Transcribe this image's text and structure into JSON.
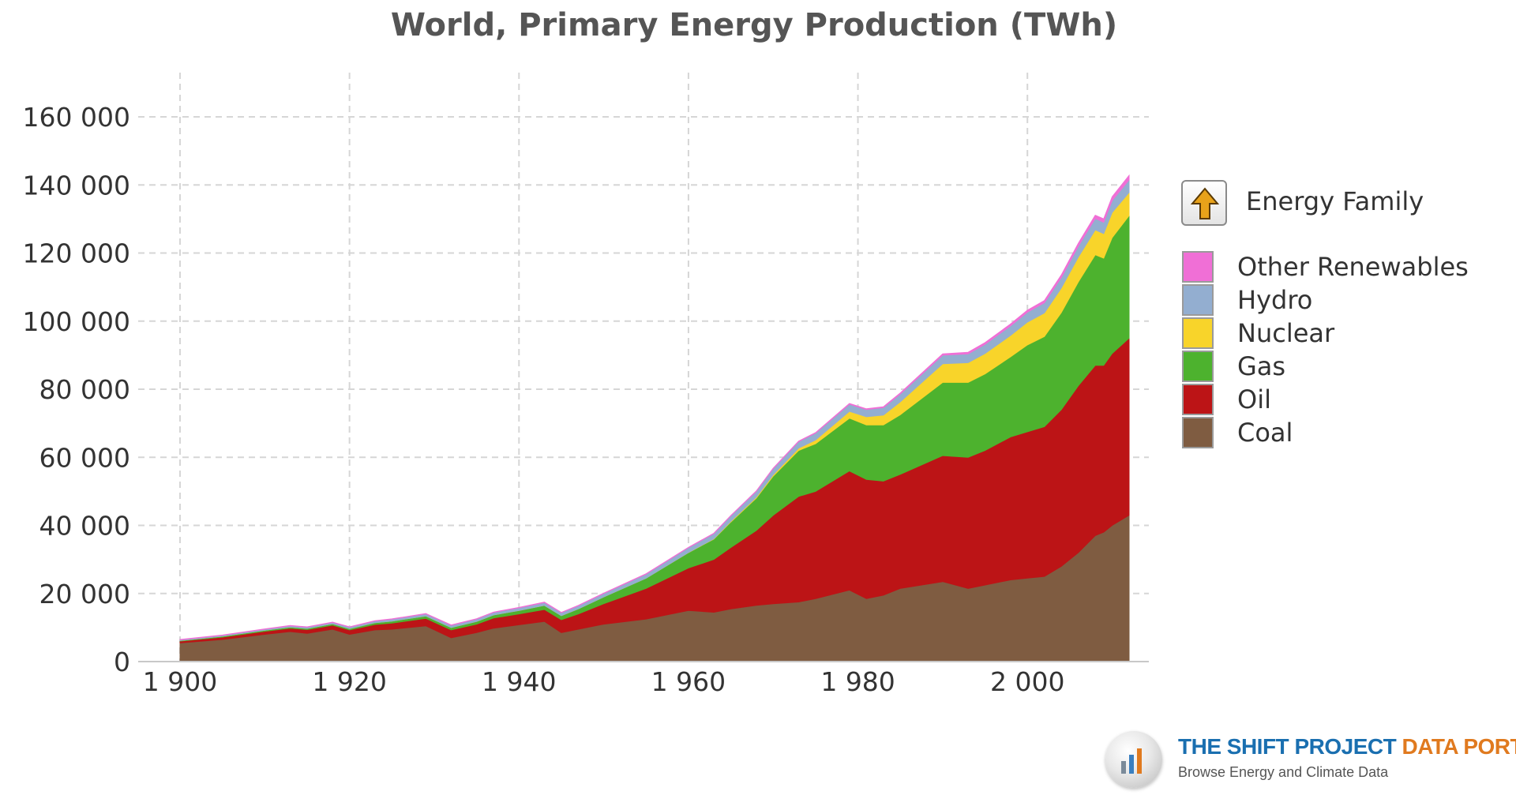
{
  "chart_data": {
    "type": "area",
    "stacked": true,
    "title": "World, Primary Energy Production (TWh)",
    "xlabel": "",
    "ylabel": "",
    "xlim": [
      1900,
      2012
    ],
    "ylim": [
      0,
      160000
    ],
    "grid": true,
    "x_ticks": [
      1900,
      1920,
      1940,
      1960,
      1980,
      2000
    ],
    "x_tick_labels": [
      "1 900",
      "1 920",
      "1 940",
      "1 960",
      "1 980",
      "2 000"
    ],
    "y_ticks": [
      0,
      20000,
      40000,
      60000,
      80000,
      100000,
      120000,
      140000,
      160000
    ],
    "y_tick_labels": [
      "0",
      "20 000",
      "40 000",
      "60 000",
      "80 000",
      "100 000",
      "120 000",
      "140 000",
      "160 000"
    ],
    "legend_heading": "Energy Family",
    "legend_position": "right",
    "x": [
      1900,
      1905,
      1910,
      1913,
      1915,
      1918,
      1920,
      1923,
      1925,
      1929,
      1932,
      1935,
      1937,
      1940,
      1943,
      1945,
      1947,
      1950,
      1955,
      1960,
      1963,
      1965,
      1968,
      1970,
      1973,
      1975,
      1979,
      1981,
      1983,
      1985,
      1990,
      1993,
      1995,
      1998,
      2000,
      2002,
      2004,
      2006,
      2008,
      2009,
      2010,
      2012
    ],
    "series": [
      {
        "name": "Coal",
        "color": "#7f5c41",
        "values": [
          5500,
          6500,
          8000,
          8800,
          8300,
          9500,
          8000,
          9300,
          9500,
          10500,
          7000,
          8500,
          9800,
          10800,
          11800,
          8500,
          9500,
          11000,
          12500,
          15000,
          14500,
          15500,
          16500,
          17000,
          17500,
          18500,
          21000,
          18500,
          19500,
          21500,
          23500,
          21500,
          22500,
          24000,
          24500,
          25000,
          28000,
          32000,
          37000,
          38000,
          40000,
          43000
        ]
      },
      {
        "name": "Oil",
        "color": "#bc1416",
        "values": [
          500,
          700,
          900,
          1000,
          1100,
          1200,
          1300,
          1600,
          1800,
          2200,
          2300,
          2500,
          3000,
          3200,
          3500,
          3800,
          4500,
          6000,
          9000,
          12500,
          15500,
          18000,
          22000,
          26000,
          31000,
          31500,
          35000,
          35000,
          33500,
          33500,
          37000,
          38500,
          39500,
          42000,
          43000,
          44000,
          46000,
          49000,
          50000,
          49000,
          50500,
          52000
        ]
      },
      {
        "name": "Gas",
        "color": "#4db22e",
        "values": [
          200,
          250,
          300,
          350,
          350,
          400,
          400,
          500,
          600,
          700,
          700,
          800,
          900,
          1000,
          1200,
          1200,
          1500,
          2000,
          3000,
          4500,
          6000,
          7500,
          9500,
          11500,
          13500,
          14000,
          15500,
          16000,
          16500,
          17500,
          21500,
          22000,
          22500,
          23500,
          25500,
          26500,
          28500,
          30500,
          32500,
          31500,
          34000,
          36000
        ]
      },
      {
        "name": "Nuclear",
        "color": "#f8d42a",
        "values": [
          0,
          0,
          0,
          0,
          0,
          0,
          0,
          0,
          0,
          0,
          0,
          0,
          0,
          0,
          0,
          0,
          0,
          0,
          0,
          50,
          100,
          200,
          300,
          400,
          700,
          1100,
          2000,
          2400,
          2900,
          3800,
          5500,
          5800,
          6000,
          6300,
          6700,
          6900,
          7200,
          7300,
          7300,
          7200,
          7400,
          6800
        ]
      },
      {
        "name": "Hydro",
        "color": "#93aed0",
        "values": [
          200,
          250,
          300,
          350,
          350,
          400,
          400,
          500,
          550,
          600,
          650,
          700,
          750,
          800,
          850,
          850,
          900,
          1000,
          1200,
          1400,
          1500,
          1600,
          1700,
          1800,
          1900,
          2000,
          2100,
          2150,
          2200,
          2300,
          2500,
          2600,
          2700,
          2800,
          2900,
          3000,
          3100,
          3200,
          3350,
          3350,
          3500,
          3700
        ]
      },
      {
        "name": "Other Renewables",
        "color": "#f06fd6",
        "values": [
          100,
          100,
          100,
          100,
          100,
          100,
          100,
          100,
          100,
          100,
          100,
          100,
          100,
          100,
          100,
          100,
          100,
          100,
          100,
          100,
          100,
          100,
          100,
          100,
          150,
          150,
          200,
          200,
          250,
          300,
          400,
          450,
          500,
          550,
          600,
          650,
          750,
          850,
          950,
          1000,
          1100,
          1300
        ]
      }
    ]
  },
  "legend_order": [
    "Other Renewables",
    "Hydro",
    "Nuclear",
    "Gas",
    "Oil",
    "Coal"
  ],
  "brand": {
    "name_part1": "THE SHIFT PROJECT",
    "name_part2": "DATA PORTAL",
    "tagline": "Browse Energy and Climate Data"
  },
  "icons": {
    "drill_up": "drill-up-arrow-icon",
    "brand_logo": "bar-chart-logo-icon"
  }
}
